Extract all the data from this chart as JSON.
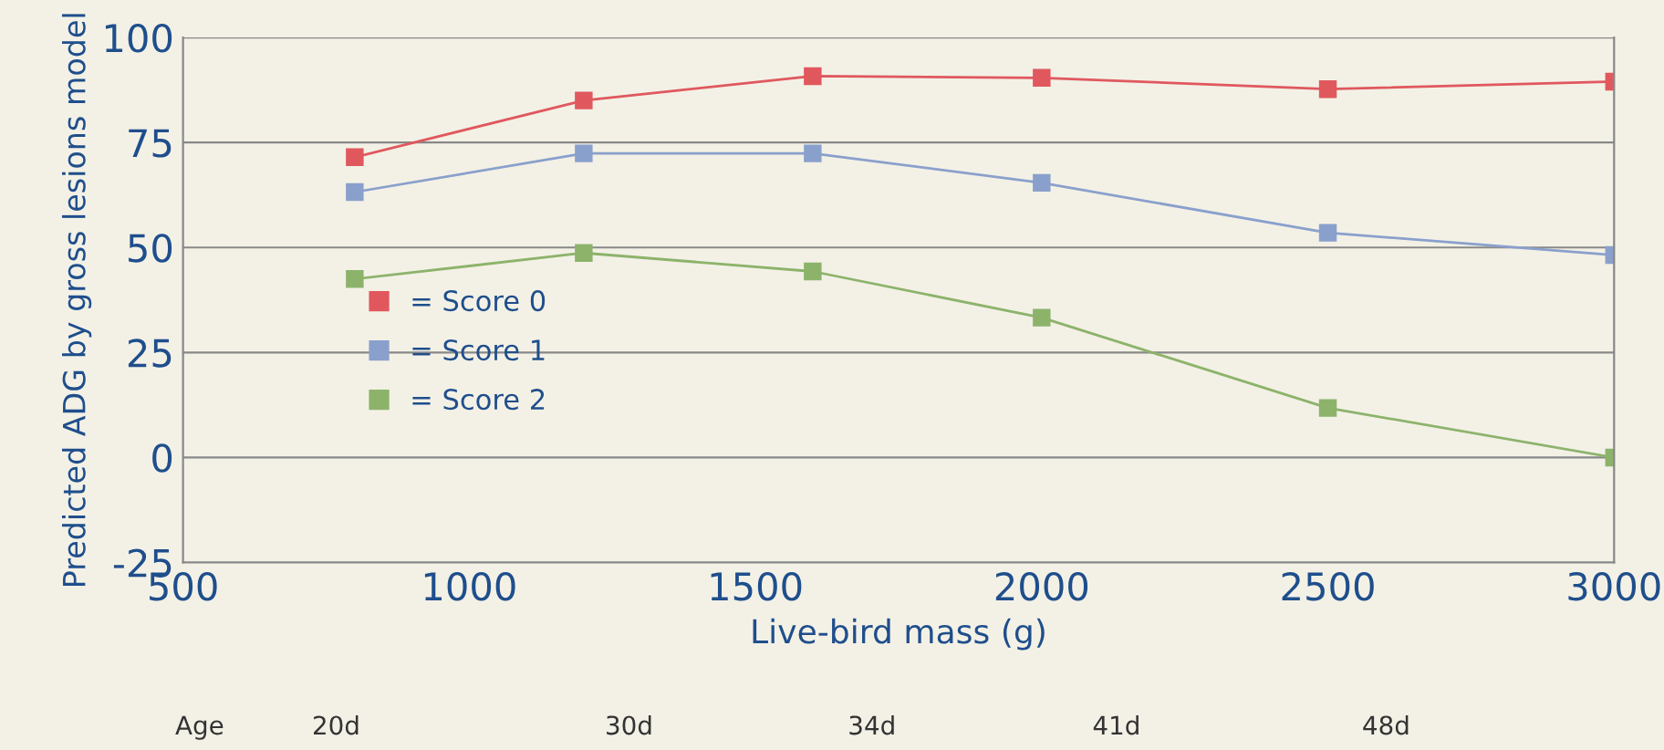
{
  "chart_data": {
    "type": "line",
    "xlabel": "Live-bird mass (g)",
    "ylabel": "Predicted ADG by gross lesions model",
    "x": [
      800,
      1200,
      1600,
      2000,
      2500,
      3000
    ],
    "series": [
      {
        "name": "= Score 0",
        "color": "#e0585e",
        "values": [
          71.5,
          85,
          90.8,
          90.4,
          87.7,
          89.5
        ]
      },
      {
        "name": "= Score 1",
        "color": "#8aa0cc",
        "values": [
          63.2,
          72.4,
          72.4,
          65.4,
          53.5,
          48.2
        ]
      },
      {
        "name": "= Score 2",
        "color": "#8db36b",
        "values": [
          42.5,
          48.7,
          44.3,
          33.3,
          11.8,
          0
        ]
      }
    ],
    "xlim": [
      500,
      3000
    ],
    "xticks": [
      500,
      1000,
      1500,
      2000,
      2500,
      3000
    ],
    "ylim": [
      -25,
      100
    ],
    "yticks": [
      -25,
      0,
      25,
      50,
      75,
      100
    ],
    "grid": "y",
    "legend": "left",
    "marker": "square",
    "line_style": "solid",
    "annotations": [
      "Age",
      "20d",
      "30d",
      "34d",
      "41d",
      "48d"
    ]
  }
}
